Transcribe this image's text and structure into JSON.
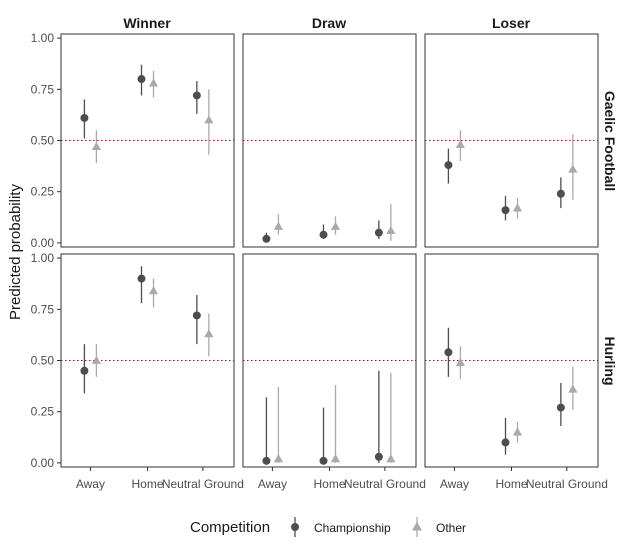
{
  "chart_data": {
    "type": "scatter",
    "ylabel": "Predicted probability",
    "xlabel": "",
    "y_ticks": [
      "0.00",
      "0.25",
      "0.50",
      "0.75",
      "1.00"
    ],
    "ylim": [
      -0.02,
      1.02
    ],
    "categories": [
      "Away",
      "Home",
      "Neutral Ground"
    ],
    "reference_line": 0.5,
    "reference_line_color": "#cc0000",
    "columns": [
      "Winner",
      "Draw",
      "Loser"
    ],
    "rows": [
      "Gaelic Football",
      "Hurling"
    ],
    "legend": {
      "title": "Competition",
      "placement": "bottom",
      "entries": [
        {
          "name": "Championship",
          "shape": "circle",
          "color": "#4d4d4d"
        },
        {
          "name": "Other",
          "shape": "triangle",
          "color": "#aaaaaa"
        }
      ]
    },
    "panels": [
      {
        "row": "Gaelic Football",
        "column": "Winner",
        "series": [
          {
            "name": "Championship",
            "points": [
              {
                "x": "Away",
                "y": 0.61,
                "lo": 0.51,
                "hi": 0.7
              },
              {
                "x": "Home",
                "y": 0.8,
                "lo": 0.72,
                "hi": 0.87
              },
              {
                "x": "Neutral Ground",
                "y": 0.72,
                "lo": 0.63,
                "hi": 0.79
              }
            ]
          },
          {
            "name": "Other",
            "points": [
              {
                "x": "Away",
                "y": 0.47,
                "lo": 0.39,
                "hi": 0.55
              },
              {
                "x": "Home",
                "y": 0.78,
                "lo": 0.71,
                "hi": 0.84
              },
              {
                "x": "Neutral Ground",
                "y": 0.6,
                "lo": 0.43,
                "hi": 0.75
              }
            ]
          }
        ]
      },
      {
        "row": "Gaelic Football",
        "column": "Draw",
        "series": [
          {
            "name": "Championship",
            "points": [
              {
                "x": "Away",
                "y": 0.02,
                "lo": 0.01,
                "hi": 0.05
              },
              {
                "x": "Home",
                "y": 0.04,
                "lo": 0.02,
                "hi": 0.09
              },
              {
                "x": "Neutral Ground",
                "y": 0.05,
                "lo": 0.02,
                "hi": 0.11
              }
            ]
          },
          {
            "name": "Other",
            "points": [
              {
                "x": "Away",
                "y": 0.08,
                "lo": 0.04,
                "hi": 0.14
              },
              {
                "x": "Home",
                "y": 0.08,
                "lo": 0.04,
                "hi": 0.13
              },
              {
                "x": "Neutral Ground",
                "y": 0.06,
                "lo": 0.01,
                "hi": 0.19
              }
            ]
          }
        ]
      },
      {
        "row": "Gaelic Football",
        "column": "Loser",
        "series": [
          {
            "name": "Championship",
            "points": [
              {
                "x": "Away",
                "y": 0.38,
                "lo": 0.29,
                "hi": 0.46
              },
              {
                "x": "Home",
                "y": 0.16,
                "lo": 0.11,
                "hi": 0.23
              },
              {
                "x": "Neutral Ground",
                "y": 0.24,
                "lo": 0.17,
                "hi": 0.32
              }
            ]
          },
          {
            "name": "Other",
            "points": [
              {
                "x": "Away",
                "y": 0.48,
                "lo": 0.4,
                "hi": 0.55
              },
              {
                "x": "Home",
                "y": 0.17,
                "lo": 0.12,
                "hi": 0.22
              },
              {
                "x": "Neutral Ground",
                "y": 0.36,
                "lo": 0.21,
                "hi": 0.53
              }
            ]
          }
        ]
      },
      {
        "row": "Hurling",
        "column": "Winner",
        "series": [
          {
            "name": "Championship",
            "points": [
              {
                "x": "Away",
                "y": 0.45,
                "lo": 0.34,
                "hi": 0.58
              },
              {
                "x": "Home",
                "y": 0.9,
                "lo": 0.78,
                "hi": 0.96
              },
              {
                "x": "Neutral Ground",
                "y": 0.72,
                "lo": 0.58,
                "hi": 0.82
              }
            ]
          },
          {
            "name": "Other",
            "points": [
              {
                "x": "Away",
                "y": 0.5,
                "lo": 0.42,
                "hi": 0.58
              },
              {
                "x": "Home",
                "y": 0.84,
                "lo": 0.76,
                "hi": 0.9
              },
              {
                "x": "Neutral Ground",
                "y": 0.63,
                "lo": 0.52,
                "hi": 0.73
              }
            ]
          }
        ]
      },
      {
        "row": "Hurling",
        "column": "Draw",
        "series": [
          {
            "name": "Championship",
            "points": [
              {
                "x": "Away",
                "y": 0.01,
                "lo": 0.0,
                "hi": 0.32
              },
              {
                "x": "Home",
                "y": 0.01,
                "lo": 0.0,
                "hi": 0.27
              },
              {
                "x": "Neutral Ground",
                "y": 0.03,
                "lo": 0.0,
                "hi": 0.45
              }
            ]
          },
          {
            "name": "Other",
            "points": [
              {
                "x": "Away",
                "y": 0.02,
                "lo": 0.0,
                "hi": 0.37
              },
              {
                "x": "Home",
                "y": 0.02,
                "lo": 0.0,
                "hi": 0.38
              },
              {
                "x": "Neutral Ground",
                "y": 0.02,
                "lo": 0.0,
                "hi": 0.44
              }
            ]
          }
        ]
      },
      {
        "row": "Hurling",
        "column": "Loser",
        "series": [
          {
            "name": "Championship",
            "points": [
              {
                "x": "Away",
                "y": 0.54,
                "lo": 0.42,
                "hi": 0.66
              },
              {
                "x": "Home",
                "y": 0.1,
                "lo": 0.04,
                "hi": 0.22
              },
              {
                "x": "Neutral Ground",
                "y": 0.27,
                "lo": 0.18,
                "hi": 0.39
              }
            ]
          },
          {
            "name": "Other",
            "points": [
              {
                "x": "Away",
                "y": 0.49,
                "lo": 0.41,
                "hi": 0.57
              },
              {
                "x": "Home",
                "y": 0.15,
                "lo": 0.1,
                "hi": 0.2
              },
              {
                "x": "Neutral Ground",
                "y": 0.36,
                "lo": 0.26,
                "hi": 0.47
              }
            ]
          }
        ]
      }
    ]
  }
}
